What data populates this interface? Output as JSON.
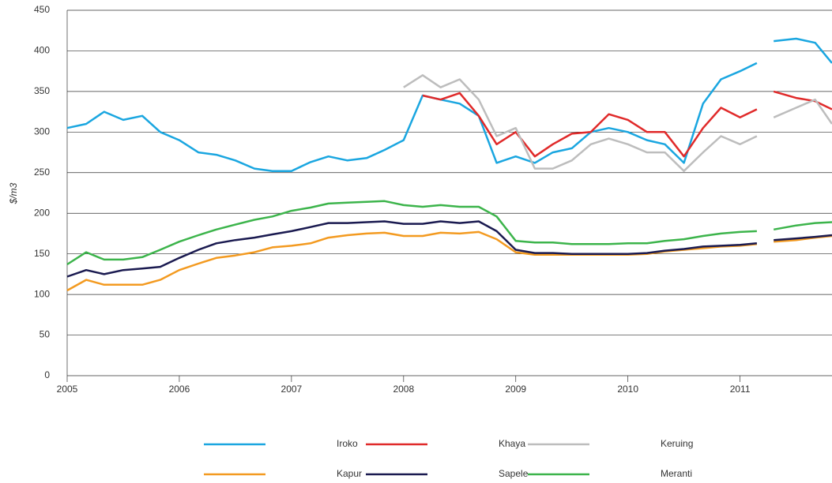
{
  "chart_data": {
    "type": "line",
    "ylabel": "$/m3",
    "x": [
      2005.0,
      2005.17,
      2005.33,
      2005.5,
      2005.67,
      2005.83,
      2006.0,
      2006.17,
      2006.33,
      2006.5,
      2006.67,
      2006.83,
      2007.0,
      2007.17,
      2007.33,
      2007.5,
      2007.67,
      2007.83,
      2008.0,
      2008.17,
      2008.33,
      2008.5,
      2008.67,
      2008.83,
      2009.0,
      2009.17,
      2009.33,
      2009.5,
      2009.67,
      2009.83,
      2010.0,
      2010.17,
      2010.33,
      2010.5,
      2010.67,
      2010.83,
      2011.0,
      2011.15,
      2011.22,
      2011.3,
      2011.5,
      2011.67,
      2011.82
    ],
    "series": [
      {
        "name": "Iroko",
        "color": "#1aa6e0",
        "values": [
          305,
          310,
          325,
          315,
          320,
          300,
          290,
          275,
          272,
          265,
          255,
          252,
          252,
          263,
          270,
          265,
          268,
          278,
          290,
          345,
          340,
          335,
          320,
          262,
          270,
          262,
          275,
          280,
          300,
          305,
          300,
          290,
          285,
          262,
          335,
          365,
          375,
          385,
          null,
          412,
          415,
          410,
          385
        ]
      },
      {
        "name": "Khaya",
        "color": "#e02a2a",
        "values": [
          null,
          null,
          null,
          null,
          null,
          null,
          null,
          null,
          null,
          null,
          null,
          null,
          null,
          null,
          null,
          null,
          null,
          null,
          null,
          345,
          340,
          348,
          320,
          285,
          300,
          270,
          285,
          298,
          300,
          322,
          315,
          300,
          300,
          270,
          305,
          330,
          318,
          328,
          null,
          350,
          342,
          338,
          328
        ]
      },
      {
        "name": "Keruing",
        "color": "#bdbdbd",
        "values": [
          null,
          null,
          null,
          null,
          null,
          null,
          null,
          null,
          null,
          null,
          null,
          null,
          null,
          null,
          null,
          null,
          null,
          null,
          355,
          370,
          355,
          365,
          340,
          295,
          305,
          255,
          255,
          265,
          285,
          292,
          285,
          275,
          275,
          252,
          275,
          295,
          285,
          295,
          null,
          318,
          330,
          340,
          310
        ]
      },
      {
        "name": "Kapur",
        "color": "#f39a20",
        "values": [
          105,
          118,
          112,
          112,
          112,
          118,
          130,
          138,
          145,
          148,
          152,
          158,
          160,
          163,
          170,
          173,
          175,
          176,
          172,
          172,
          176,
          175,
          177,
          168,
          152,
          149,
          149,
          149,
          149,
          149,
          149,
          150,
          153,
          155,
          157,
          159,
          160,
          162,
          null,
          165,
          167,
          170,
          172
        ]
      },
      {
        "name": "Sapele",
        "color": "#1a1a50",
        "values": [
          122,
          130,
          125,
          130,
          132,
          134,
          145,
          155,
          163,
          167,
          170,
          174,
          178,
          183,
          188,
          188,
          189,
          190,
          187,
          187,
          190,
          188,
          190,
          178,
          155,
          151,
          151,
          150,
          150,
          150,
          150,
          151,
          154,
          156,
          159,
          160,
          161,
          163,
          null,
          167,
          169,
          171,
          173
        ]
      },
      {
        "name": "Meranti",
        "color": "#3cb44b",
        "values": [
          137,
          152,
          143,
          143,
          146,
          155,
          165,
          173,
          180,
          186,
          192,
          196,
          203,
          207,
          212,
          213,
          214,
          215,
          210,
          208,
          210,
          208,
          208,
          196,
          166,
          164,
          164,
          162,
          162,
          162,
          163,
          163,
          166,
          168,
          172,
          175,
          177,
          178,
          null,
          180,
          185,
          188,
          189
        ]
      }
    ],
    "xlim": [
      2005,
      2011.82
    ],
    "xticks": [
      2005,
      2006,
      2007,
      2008,
      2009,
      2010,
      2011
    ],
    "ylim": [
      0,
      450
    ],
    "yticks": [
      0,
      50,
      100,
      150,
      200,
      250,
      300,
      350,
      400,
      450
    ],
    "grid": true
  }
}
